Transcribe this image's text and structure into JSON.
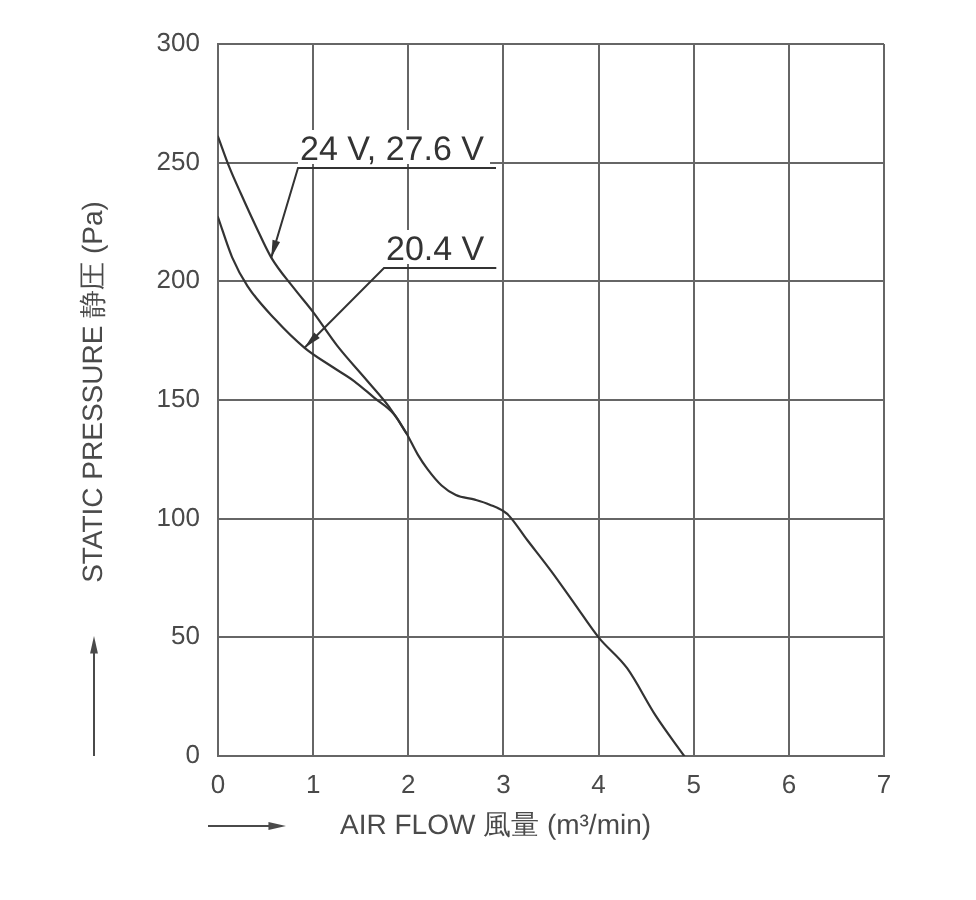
{
  "chart_data": {
    "type": "line",
    "xlabel": "AIR FLOW 風量 (m³/min)",
    "ylabel": "STATIC PRESSURE 静圧 (Pa)",
    "xlim": [
      0,
      7
    ],
    "xticks": [
      0,
      1,
      2,
      3,
      4,
      5,
      6,
      7
    ],
    "ylim": [
      0,
      300
    ],
    "yticks": [
      0,
      50,
      100,
      150,
      200,
      250,
      300
    ],
    "grid": true,
    "legend": false,
    "marker": "none",
    "line_style": "solid",
    "series": [
      {
        "name": "24 V, 27.6 V",
        "color": "#333333",
        "x": [
          0,
          0.12,
          0.24,
          0.4,
          0.56,
          0.8,
          1.0,
          1.25,
          1.57,
          1.8,
          1.98,
          2.1,
          2.2,
          2.35,
          2.5,
          2.7,
          2.85,
          3.04,
          3.25,
          3.5,
          3.75,
          4.0,
          4.3,
          4.6,
          4.9
        ],
        "values": [
          261,
          248,
          237,
          223,
          210,
          197,
          187,
          173,
          158,
          147,
          136,
          127,
          121,
          114,
          110,
          108,
          106,
          102,
          91,
          78,
          64,
          50,
          37,
          17,
          0
        ]
      },
      {
        "name": "20.4 V",
        "color": "#333333",
        "x": [
          0,
          0.15,
          0.31,
          0.6,
          0.91,
          1.2,
          1.43,
          1.64,
          1.85,
          1.98
        ],
        "values": [
          227,
          210,
          198,
          184,
          172,
          164,
          158,
          151,
          144,
          136
        ]
      }
    ]
  }
}
